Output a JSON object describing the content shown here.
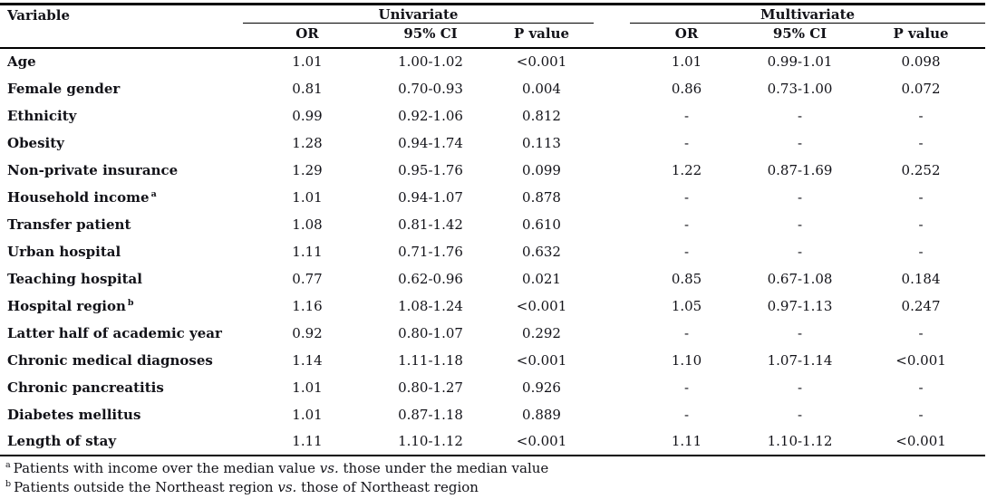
{
  "table": {
    "columns": {
      "variable": "Variable",
      "group_univariate": "Univariate",
      "group_multivariate": "Multivariate",
      "subcols": [
        "OR",
        "95% CI",
        "P value"
      ]
    },
    "rows": [
      {
        "variable": "Age",
        "sup": "",
        "univariate": {
          "or": "1.01",
          "ci": "1.00-1.02",
          "p": "<0.001"
        },
        "multivariate": {
          "or": "1.01",
          "ci": "0.99-1.01",
          "p": "0.098"
        }
      },
      {
        "variable": "Female gender",
        "sup": "",
        "univariate": {
          "or": "0.81",
          "ci": "0.70-0.93",
          "p": "0.004"
        },
        "multivariate": {
          "or": "0.86",
          "ci": "0.73-1.00",
          "p": "0.072"
        }
      },
      {
        "variable": "Ethnicity",
        "sup": "",
        "univariate": {
          "or": "0.99",
          "ci": "0.92-1.06",
          "p": "0.812"
        },
        "multivariate": {
          "or": "-",
          "ci": "-",
          "p": "-"
        }
      },
      {
        "variable": "Obesity",
        "sup": "",
        "univariate": {
          "or": "1.28",
          "ci": "0.94-1.74",
          "p": "0.113"
        },
        "multivariate": {
          "or": "-",
          "ci": "-",
          "p": "-"
        }
      },
      {
        "variable": "Non-private insurance",
        "sup": "",
        "univariate": {
          "or": "1.29",
          "ci": "0.95-1.76",
          "p": "0.099"
        },
        "multivariate": {
          "or": "1.22",
          "ci": "0.87-1.69",
          "p": "0.252"
        }
      },
      {
        "variable": "Household income",
        "sup": "a",
        "univariate": {
          "or": "1.01",
          "ci": "0.94-1.07",
          "p": "0.878"
        },
        "multivariate": {
          "or": "-",
          "ci": "-",
          "p": "-"
        }
      },
      {
        "variable": "Transfer patient",
        "sup": "",
        "univariate": {
          "or": "1.08",
          "ci": "0.81-1.42",
          "p": "0.610"
        },
        "multivariate": {
          "or": "-",
          "ci": "-",
          "p": "-"
        }
      },
      {
        "variable": "Urban hospital",
        "sup": "",
        "univariate": {
          "or": "1.11",
          "ci": "0.71-1.76",
          "p": "0.632"
        },
        "multivariate": {
          "or": "-",
          "ci": "-",
          "p": "-"
        }
      },
      {
        "variable": "Teaching hospital",
        "sup": "",
        "univariate": {
          "or": "0.77",
          "ci": "0.62-0.96",
          "p": "0.021"
        },
        "multivariate": {
          "or": "0.85",
          "ci": "0.67-1.08",
          "p": "0.184"
        }
      },
      {
        "variable": "Hospital region",
        "sup": "b",
        "univariate": {
          "or": "1.16",
          "ci": "1.08-1.24",
          "p": "<0.001"
        },
        "multivariate": {
          "or": "1.05",
          "ci": "0.97-1.13",
          "p": "0.247"
        }
      },
      {
        "variable": "Latter half of academic year",
        "sup": "",
        "univariate": {
          "or": "0.92",
          "ci": "0.80-1.07",
          "p": "0.292"
        },
        "multivariate": {
          "or": "-",
          "ci": "-",
          "p": "-"
        }
      },
      {
        "variable": "Chronic medical diagnoses",
        "sup": "",
        "univariate": {
          "or": "1.14",
          "ci": "1.11-1.18",
          "p": "<0.001"
        },
        "multivariate": {
          "or": "1.10",
          "ci": "1.07-1.14",
          "p": "<0.001"
        }
      },
      {
        "variable": "Chronic pancreatitis",
        "sup": "",
        "univariate": {
          "or": "1.01",
          "ci": "0.80-1.27",
          "p": "0.926"
        },
        "multivariate": {
          "or": "-",
          "ci": "-",
          "p": "-"
        }
      },
      {
        "variable": "Diabetes mellitus",
        "sup": "",
        "univariate": {
          "or": "1.01",
          "ci": "0.87-1.18",
          "p": "0.889"
        },
        "multivariate": {
          "or": "-",
          "ci": "-",
          "p": "-"
        }
      },
      {
        "variable": "Length of stay",
        "sup": "",
        "univariate": {
          "or": "1.11",
          "ci": "1.10-1.12",
          "p": "<0.001"
        },
        "multivariate": {
          "or": "1.11",
          "ci": "1.10-1.12",
          "p": "<0.001"
        }
      }
    ],
    "footnotes": [
      {
        "marker": "a",
        "before_vs": "Patients with income over the median value ",
        "vs": "vs.",
        "after_vs": " those under the median value"
      },
      {
        "marker": "b",
        "before_vs": "Patients outside the Northeast region ",
        "vs": "vs.",
        "after_vs": " those of Northeast region"
      }
    ]
  },
  "colors": {
    "text": "#121218",
    "rule": "#000000",
    "background": "#ffffff"
  }
}
